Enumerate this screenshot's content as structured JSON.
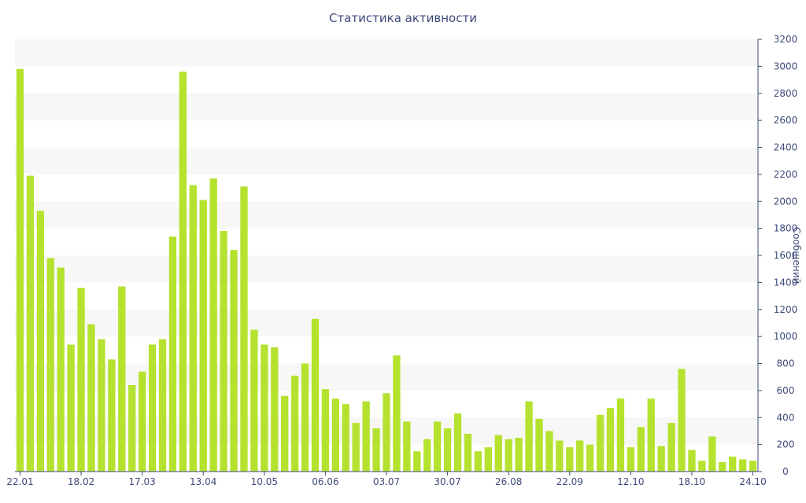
{
  "chart_data": {
    "type": "bar",
    "title": "Статистика активности",
    "ylabel": "Сообщений",
    "y_axis_side": "right",
    "ylim": [
      0,
      3200
    ],
    "y_ticks": [
      0,
      200,
      400,
      600,
      800,
      1000,
      1200,
      1400,
      1600,
      1800,
      2000,
      2200,
      2400,
      2600,
      2800,
      3000,
      3200
    ],
    "x_tick_labels": [
      "22.01",
      "18.02",
      "17.03",
      "13.04",
      "10.05",
      "06.06",
      "03.07",
      "30.07",
      "26.08",
      "22.09",
      "12.10",
      "18.10",
      "24.10"
    ],
    "x_tick_bar_index": [
      0,
      6,
      12,
      18,
      24,
      30,
      36,
      42,
      48,
      54,
      60,
      66,
      72
    ],
    "values": [
      2980,
      2190,
      1930,
      1580,
      1510,
      940,
      1360,
      1090,
      980,
      830,
      1370,
      640,
      740,
      940,
      980,
      1740,
      2960,
      2120,
      2010,
      2170,
      1780,
      1640,
      2110,
      1050,
      940,
      920,
      560,
      710,
      800,
      1130,
      610,
      540,
      500,
      360,
      520,
      320,
      580,
      860,
      370,
      150,
      240,
      370,
      320,
      430,
      280,
      150,
      180,
      270,
      240,
      250,
      520,
      390,
      300,
      230,
      180,
      230,
      200,
      420,
      470,
      540,
      180,
      330,
      540,
      190,
      360,
      760,
      160,
      80,
      260,
      70,
      110,
      90,
      80
    ],
    "bar_color": "#b5e22e",
    "grid_band_color": "#f7f7f7",
    "axis_color": "#3d4a7a",
    "grid": true
  }
}
